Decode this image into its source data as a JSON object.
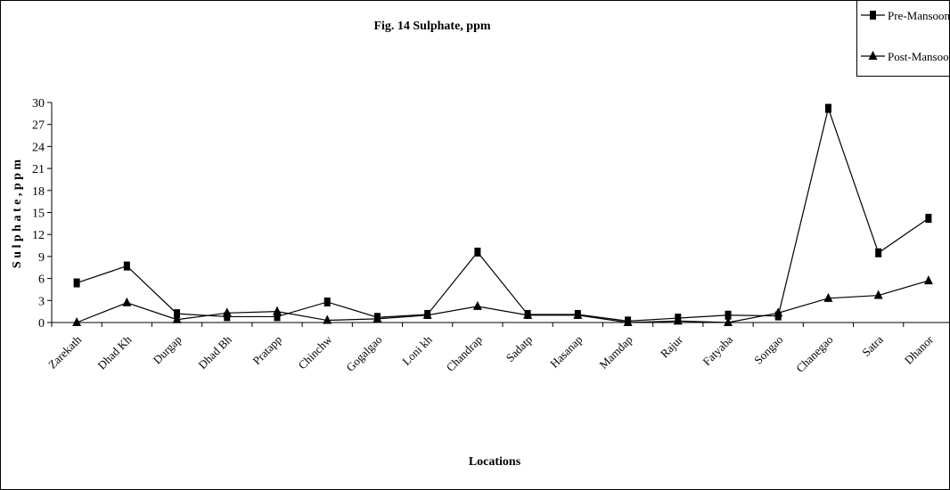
{
  "chart_data": {
    "type": "line",
    "title": "Fig. 14 Sulphate, ppm",
    "xlabel": "Locations",
    "ylabel": "S u l p h a t e , p p m",
    "categories": [
      "Zarekath",
      "Dhad Kh",
      "Durgap",
      "Dhad Bh",
      "Pratapp",
      "Chinchw",
      "Gogalgao",
      "Loni kh",
      "Chandrap",
      "Sadatp",
      "Hasanap",
      "Mamdap",
      "Rajur",
      "Fatyaba",
      "Songao",
      "Chanegao",
      "Satra",
      "Dhanor"
    ],
    "ylim": [
      0,
      30
    ],
    "yticks": [
      0,
      3,
      6,
      9,
      12,
      15,
      18,
      21,
      24,
      27,
      30
    ],
    "grid": false,
    "legend_position": "top-right",
    "series": [
      {
        "name": "Pre-Mansoon",
        "marker": "square",
        "values": [
          5.4,
          7.7,
          1.2,
          0.8,
          0.8,
          2.8,
          0.7,
          1.1,
          9.6,
          1.1,
          1.1,
          0.2,
          0.6,
          1.0,
          0.9,
          29.2,
          9.5,
          14.2
        ]
      },
      {
        "name": "Post-Mansoon",
        "marker": "triangle",
        "values": [
          0.0,
          2.7,
          0.4,
          1.3,
          1.5,
          0.3,
          0.5,
          1.0,
          2.2,
          1.0,
          1.0,
          0.0,
          0.2,
          0.0,
          1.3,
          3.3,
          3.7,
          5.7
        ]
      }
    ]
  }
}
